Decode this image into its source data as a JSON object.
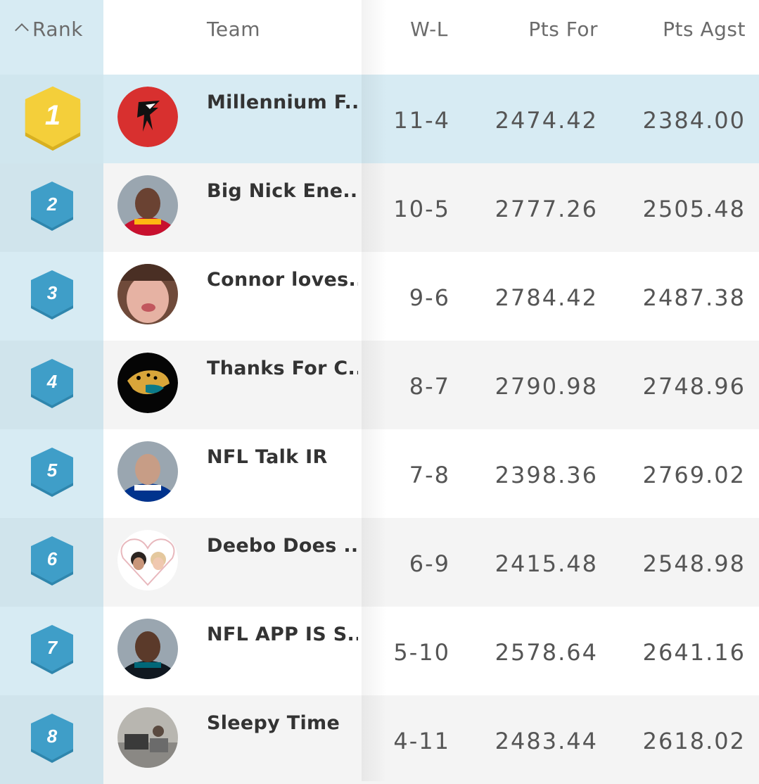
{
  "header": {
    "rank": "Rank",
    "team": "Team",
    "wl": "W-L",
    "pts_for": "Pts For",
    "pts_agst": "Pts Agst"
  },
  "colors": {
    "gold_hex": "#f4cf3a",
    "blue_hex": "#3f9ec8",
    "rank_bg": "#d7ebf3"
  },
  "rows": [
    {
      "rank": "1",
      "team": "Millennium F...",
      "wl": "11-4",
      "pts_for": "2474.42",
      "pts_agst": "2384.00",
      "avatar": "falcons-logo"
    },
    {
      "rank": "2",
      "team": "Big Nick Ene...",
      "wl": "10-5",
      "pts_for": "2777.26",
      "pts_agst": "2505.48",
      "avatar": "player-photo"
    },
    {
      "rank": "3",
      "team": "Connor loves...",
      "wl": "9-6",
      "pts_for": "2784.42",
      "pts_agst": "2487.38",
      "avatar": "face-photo"
    },
    {
      "rank": "4",
      "team": "Thanks For C...",
      "wl": "8-7",
      "pts_for": "2790.98",
      "pts_agst": "2748.96",
      "avatar": "jaguars-logo"
    },
    {
      "rank": "5",
      "team": "NFL Talk IR",
      "wl": "7-8",
      "pts_for": "2398.36",
      "pts_agst": "2769.02",
      "avatar": "player-photo"
    },
    {
      "rank": "6",
      "team": "Deebo Does ...",
      "wl": "6-9",
      "pts_for": "2415.48",
      "pts_agst": "2548.98",
      "avatar": "heart-couple-photo"
    },
    {
      "rank": "7",
      "team": "NFL APP IS S...",
      "wl": "5-10",
      "pts_for": "2578.64",
      "pts_agst": "2641.16",
      "avatar": "player-photo"
    },
    {
      "rank": "8",
      "team": "Sleepy Time",
      "wl": "4-11",
      "pts_for": "2483.44",
      "pts_agst": "2618.02",
      "avatar": "scene-photo"
    }
  ]
}
